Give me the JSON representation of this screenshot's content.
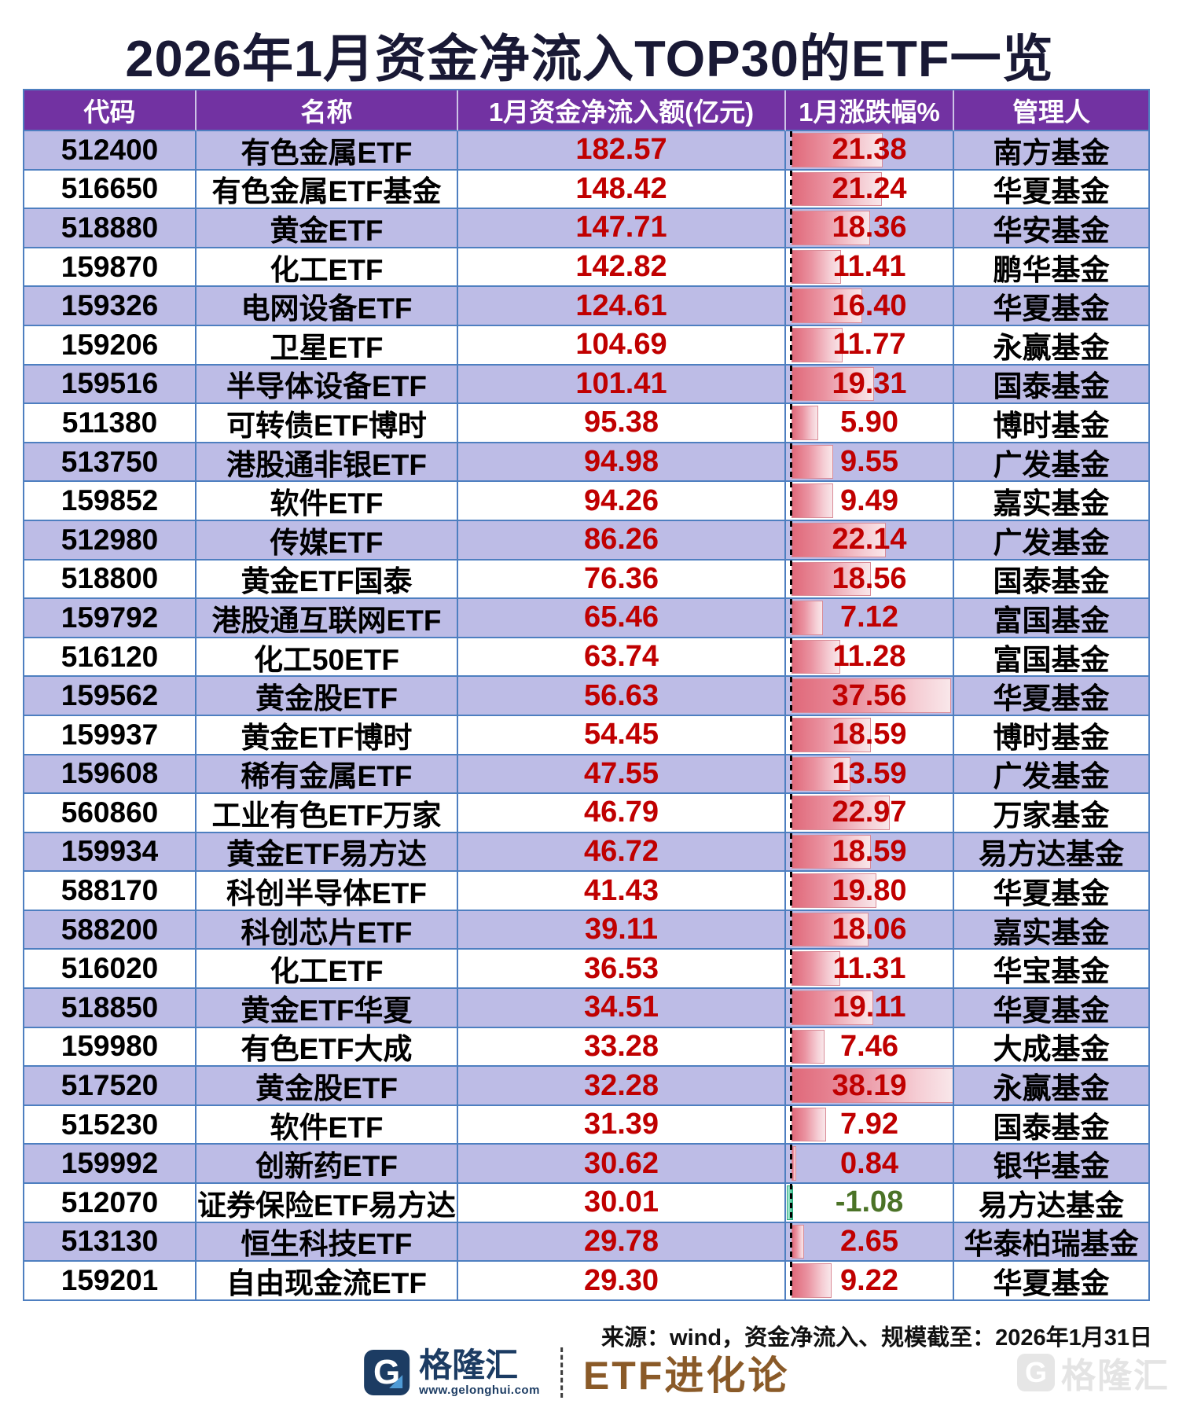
{
  "page": {
    "title": "2026年1月资金净流入TOP30的ETF一览"
  },
  "table": {
    "columns": [
      "代码",
      "名称",
      "1月资金净流入额(亿元)",
      "1月涨跌幅%",
      "管理人"
    ]
  },
  "chart_data": {
    "type": "table",
    "title": "2026年1月资金净流入TOP30的ETF一览",
    "columns": [
      "代码",
      "名称",
      "1月资金净流入额(亿元)",
      "1月涨跌幅%",
      "管理人"
    ],
    "bar_column": "1月涨跌幅%",
    "bar_axis_max": 38.19,
    "bar_style": "red gradient databar from zero axis, green for negative",
    "rows": [
      [
        "512400",
        "有色金属ETF",
        182.57,
        21.38,
        "南方基金"
      ],
      [
        "516650",
        "有色金属ETF基金",
        148.42,
        21.24,
        "华夏基金"
      ],
      [
        "518880",
        "黄金ETF",
        147.71,
        18.36,
        "华安基金"
      ],
      [
        "159870",
        "化工ETF",
        142.82,
        11.41,
        "鹏华基金"
      ],
      [
        "159326",
        "电网设备ETF",
        124.61,
        16.4,
        "华夏基金"
      ],
      [
        "159206",
        "卫星ETF",
        104.69,
        11.77,
        "永赢基金"
      ],
      [
        "159516",
        "半导体设备ETF",
        101.41,
        19.31,
        "国泰基金"
      ],
      [
        "511380",
        "可转债ETF博时",
        95.38,
        5.9,
        "博时基金"
      ],
      [
        "513750",
        "港股通非银ETF",
        94.98,
        9.55,
        "广发基金"
      ],
      [
        "159852",
        "软件ETF",
        94.26,
        9.49,
        "嘉实基金"
      ],
      [
        "512980",
        "传媒ETF",
        86.26,
        22.14,
        "广发基金"
      ],
      [
        "518800",
        "黄金ETF国泰",
        76.36,
        18.56,
        "国泰基金"
      ],
      [
        "159792",
        "港股通互联网ETF",
        65.46,
        7.12,
        "富国基金"
      ],
      [
        "516120",
        "化工50ETF",
        63.74,
        11.28,
        "富国基金"
      ],
      [
        "159562",
        "黄金股ETF",
        56.63,
        37.56,
        "华夏基金"
      ],
      [
        "159937",
        "黄金ETF博时",
        54.45,
        18.59,
        "博时基金"
      ],
      [
        "159608",
        "稀有金属ETF",
        47.55,
        13.59,
        "广发基金"
      ],
      [
        "560860",
        "工业有色ETF万家",
        46.79,
        22.97,
        "万家基金"
      ],
      [
        "159934",
        "黄金ETF易方达",
        46.72,
        18.59,
        "易方达基金"
      ],
      [
        "588170",
        "科创半导体ETF",
        41.43,
        19.8,
        "华夏基金"
      ],
      [
        "588200",
        "科创芯片ETF",
        39.11,
        18.06,
        "嘉实基金"
      ],
      [
        "516020",
        "化工ETF",
        36.53,
        11.31,
        "华宝基金"
      ],
      [
        "518850",
        "黄金ETF华夏",
        34.51,
        19.11,
        "华夏基金"
      ],
      [
        "159980",
        "有色ETF大成",
        33.28,
        7.46,
        "大成基金"
      ],
      [
        "517520",
        "黄金股ETF",
        32.28,
        38.19,
        "永赢基金"
      ],
      [
        "515230",
        "软件ETF",
        31.39,
        7.92,
        "国泰基金"
      ],
      [
        "159992",
        "创新药ETF",
        30.62,
        0.84,
        "银华基金"
      ],
      [
        "512070",
        "证券保险ETF易方达",
        30.01,
        -1.08,
        "易方达基金"
      ],
      [
        "513130",
        "恒生科技ETF",
        29.78,
        2.65,
        "华泰柏瑞基金"
      ],
      [
        "159201",
        "自由现金流ETF",
        29.3,
        9.22,
        "华夏基金"
      ]
    ]
  },
  "footer": {
    "source": "来源：wind，资金净流入、规模截至：2026年1月31日"
  },
  "branding": {
    "icon_letter": "G",
    "logo_text": "格隆汇",
    "logo_url": "www.gelonghui.com",
    "column_title": "ETF进化论"
  },
  "colors": {
    "header_bg": "#7232a2",
    "row_alt_bg": "#bdbce6",
    "grid_border": "#4e7fc0",
    "value_red": "#c00000",
    "negative_green": "#4b7327",
    "bar_red": "#e0697a",
    "bar_green": "#37c08f",
    "title_navy": "#191935",
    "brand_navy": "#1c3c63",
    "brand_brown": "#8a5a28"
  }
}
